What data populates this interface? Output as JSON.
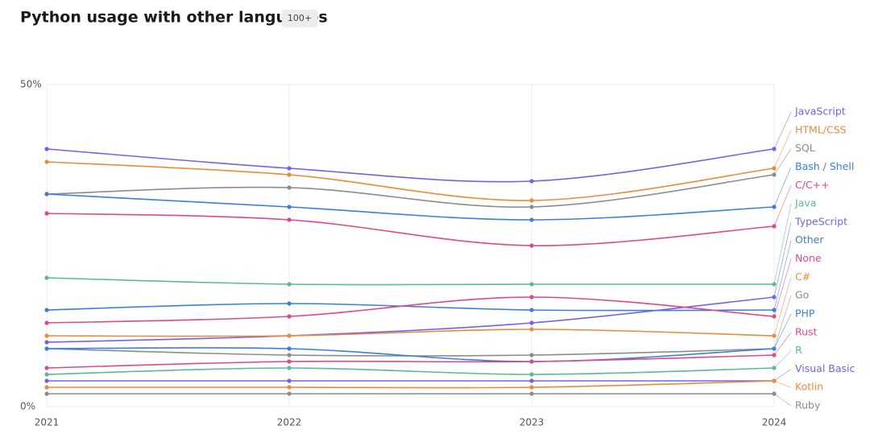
{
  "chart_data": {
    "type": "line",
    "title": "Python usage with other languages",
    "badge": "100+",
    "categories": [
      "2021",
      "2022",
      "2023",
      "2024"
    ],
    "ylim": [
      0,
      50
    ],
    "yticks": [
      {
        "value": 0,
        "label": "0%"
      },
      {
        "value": 50,
        "label": "50%"
      }
    ],
    "grid": true,
    "series": [
      {
        "name": "JavaScript",
        "color": "#7360f2",
        "values": [
          40,
          37,
          35,
          40
        ]
      },
      {
        "name": "HTML/CSS",
        "color": "#eb8a3a",
        "values": [
          38,
          36,
          32,
          37
        ]
      },
      {
        "name": "SQL",
        "color": "#8c8c8c",
        "values": [
          33,
          34,
          31,
          36
        ]
      },
      {
        "name": "Bash / Shell",
        "color": "#3b7de0",
        "values": [
          33,
          31,
          29,
          31
        ]
      },
      {
        "name": "C/C++",
        "color": "#e0488b",
        "values": [
          30,
          29,
          25,
          28
        ]
      },
      {
        "name": "Java",
        "color": "#5cb89a",
        "values": [
          20,
          19,
          19,
          19
        ]
      },
      {
        "name": "TypeScript",
        "color": "#7360f2",
        "values": [
          10,
          11,
          13,
          17
        ]
      },
      {
        "name": "Other",
        "color": "#3b7de0",
        "values": [
          15,
          16,
          15,
          15
        ]
      },
      {
        "name": "None",
        "color": "#e0488b",
        "values": [
          13,
          14,
          17,
          14
        ]
      },
      {
        "name": "C#",
        "color": "#eb8a3a",
        "values": [
          11,
          11,
          12,
          11
        ]
      },
      {
        "name": "Go",
        "color": "#8c8c8c",
        "values": [
          9,
          8,
          8,
          9
        ]
      },
      {
        "name": "PHP",
        "color": "#3b7de0",
        "values": [
          9,
          9,
          7,
          9
        ]
      },
      {
        "name": "Rust",
        "color": "#e0488b",
        "values": [
          6,
          7,
          7,
          8
        ]
      },
      {
        "name": "R",
        "color": "#5cb89a",
        "values": [
          5,
          6,
          5,
          6
        ]
      },
      {
        "name": "Visual Basic",
        "color": "#7360f2",
        "values": [
          4,
          4,
          4,
          4
        ]
      },
      {
        "name": "Kotlin",
        "color": "#eb8a3a",
        "values": [
          3,
          3,
          3,
          4
        ]
      },
      {
        "name": "Ruby",
        "color": "#8c8c8c",
        "values": [
          2,
          2,
          2,
          2
        ]
      }
    ]
  }
}
